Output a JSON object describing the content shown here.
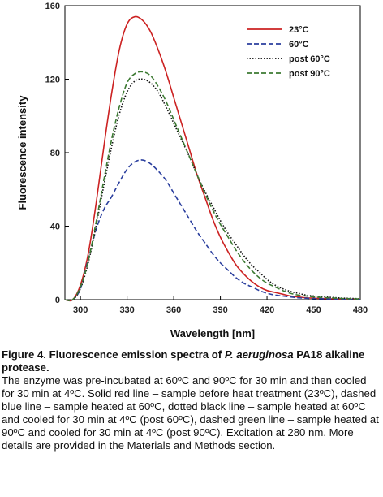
{
  "chart_data": {
    "type": "line",
    "xlabel": "Wavelength [nm]",
    "ylabel": "Fluorescence intensity",
    "xlim": [
      290,
      480
    ],
    "ylim": [
      0,
      160
    ],
    "xticks": [
      300,
      330,
      360,
      390,
      420,
      450,
      480
    ],
    "yticks": [
      0,
      40,
      80,
      120,
      160
    ],
    "grid": false,
    "legend_position": "top-right",
    "x": [
      290,
      295,
      300,
      305,
      310,
      315,
      320,
      325,
      330,
      335,
      340,
      345,
      350,
      355,
      360,
      365,
      370,
      375,
      380,
      385,
      390,
      395,
      400,
      405,
      410,
      415,
      420,
      425,
      430,
      435,
      440,
      445,
      450,
      460,
      470,
      480
    ],
    "series": [
      {
        "name": "23°C",
        "color": "#cc2222",
        "dash": "solid",
        "values": [
          0,
          0,
          8,
          25,
          52,
          83,
          112,
          136,
          150,
          154,
          152,
          146,
          136,
          124,
          110,
          96,
          82,
          68,
          56,
          44,
          34,
          26,
          19,
          14,
          10,
          7,
          5,
          4,
          3,
          2,
          1.5,
          1,
          0.8,
          0.5,
          0.3,
          0.2
        ]
      },
      {
        "name": "60°C",
        "color": "#2b3f9e",
        "dash": "dashed",
        "values": [
          0,
          0,
          6,
          22,
          38,
          49,
          56,
          64,
          71,
          75,
          76,
          74,
          70,
          65,
          58,
          51,
          44,
          37,
          31,
          25,
          20,
          16,
          12,
          9,
          7,
          5,
          3.5,
          2.5,
          2,
          1.5,
          1,
          0.8,
          0.6,
          0.4,
          0.2,
          0.1
        ]
      },
      {
        "name": "post 60°C",
        "color": "#111111",
        "dash": "dotted",
        "values": [
          0,
          0,
          6,
          20,
          40,
          62,
          83,
          101,
          113,
          119,
          120,
          118,
          113,
          105,
          96,
          87,
          78,
          68,
          59,
          51,
          43,
          36,
          30,
          24,
          19,
          15,
          11,
          8,
          6,
          4.5,
          3.5,
          2.5,
          2,
          1.3,
          0.8,
          0.5
        ]
      },
      {
        "name": "post 90°C",
        "color": "#3c7a32",
        "dash": "dashed",
        "values": [
          0,
          0,
          7,
          21,
          42,
          65,
          87,
          105,
          118,
          123,
          124,
          122,
          116,
          108,
          98,
          88,
          78,
          68,
          58,
          49,
          41,
          34,
          27,
          21,
          16,
          12,
          9,
          7,
          5,
          3.5,
          2.5,
          2,
          1.5,
          1,
          0.6,
          0.4
        ]
      }
    ]
  },
  "caption": {
    "title_prefix": "Figure 4. Fluorescence emission spectra of ",
    "title_species": "P. aeruginosa",
    "title_suffix": " PA18 alkaline protease.",
    "body": "The enzyme was pre-incubated at 60ºC and 90ºC for 30 min and then cooled for 30 min at 4ºC. Solid red line – sample before heat treatment (23ºC), dashed blue line – sample heated at 60ºC, dotted black line – sample heated at 60ºC and cooled for 30 min at 4ºC (post 60ºC), dashed green line – sample heated at 90ºC and cooled for 30 min at 4ºC (post 90ºC). Excitation at 280 nm. More details are provided in the Materials and Methods section."
  }
}
